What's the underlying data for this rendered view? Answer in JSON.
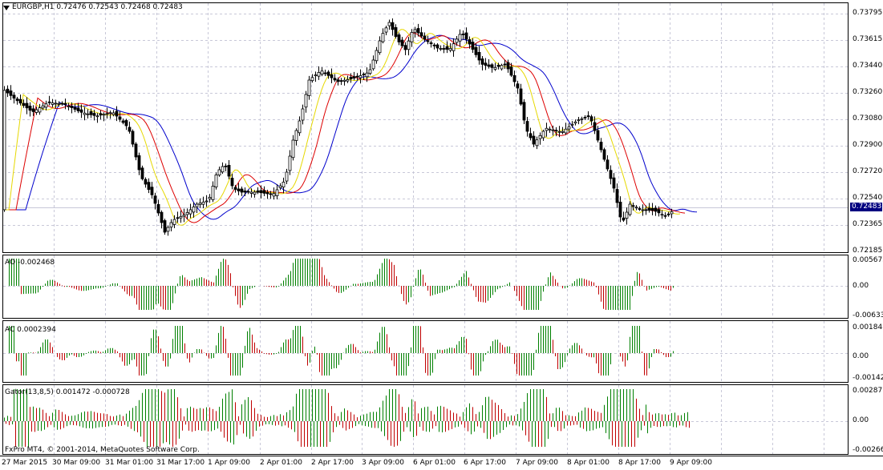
{
  "main": {
    "header": "EURGBP,H1  0.72476 0.72543 0.72468 0.72483",
    "price_labels": [
      "0.73795",
      "0.73615",
      "0.73440",
      "0.73260",
      "0.73080",
      "0.72900",
      "0.72720",
      "0.72540",
      "0.72365",
      "0.72185"
    ],
    "current_price": "0.72483",
    "colors": {
      "jaw": "#0000cc",
      "teeth": "#dd0000",
      "lips": "#e6d800",
      "candle": "#000000"
    }
  },
  "ao": {
    "header": "AO -0.002468",
    "labels": [
      "0.005673",
      "0.00",
      "-0.006337"
    ],
    "colors": {
      "up": "#008000",
      "down": "#c00000"
    }
  },
  "ac": {
    "header": "AC 0.0002394",
    "labels": [
      "0.001848",
      "0.00",
      "-0.001422"
    ]
  },
  "gator": {
    "header": "Gator(13,8,5) 0.001472 -0.000728",
    "labels": [
      "0.00287",
      "0.00",
      "-0.00266"
    ]
  },
  "footer": {
    "copyright": "FxPro MT4, © 2001-2014, MetaQuotes Software Corp."
  },
  "time_labels": [
    "27 Mar 2015",
    "30 Mar 09:00",
    "31 Mar 01:00",
    "31 Mar 17:00",
    "1 Apr 09:00",
    "2 Apr 01:00",
    "2 Apr 17:00",
    "3 Apr 09:00",
    "6 Apr 01:00",
    "6 Apr 17:00",
    "7 Apr 09:00",
    "8 Apr 01:00",
    "8 Apr 17:00",
    "9 Apr 09:00"
  ]
}
